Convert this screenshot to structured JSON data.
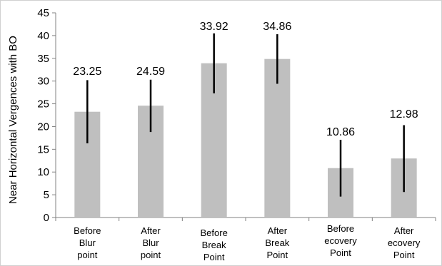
{
  "chart_data": {
    "type": "bar",
    "title": "",
    "xlabel": "",
    "ylabel": "Near Horizontal Vergences with BO",
    "ylim": [
      0,
      45
    ],
    "yticks": [
      0,
      5,
      10,
      15,
      20,
      25,
      30,
      35,
      40,
      45
    ],
    "grid": false,
    "legend": "none",
    "categories": [
      [
        "Before",
        "Blur",
        "point"
      ],
      [
        "After",
        "Blur",
        "point"
      ],
      [
        "Before",
        "Break",
        "Point"
      ],
      [
        "After",
        "Break",
        "Point"
      ],
      [
        "Before",
        "ecovery",
        "Point"
      ],
      [
        "After",
        "ecovery",
        "Point"
      ]
    ],
    "values": [
      23.25,
      24.59,
      33.92,
      34.86,
      10.86,
      12.98
    ],
    "data_labels": [
      "23.25",
      "24.59",
      "33.92",
      "34.86",
      "10.86",
      "12.98"
    ],
    "error_bars": [
      {
        "low": 16.3,
        "high": 30.2
      },
      {
        "low": 18.8,
        "high": 30.3
      },
      {
        "low": 27.3,
        "high": 40.5
      },
      {
        "low": 29.4,
        "high": 40.3
      },
      {
        "low": 4.6,
        "high": 17.1
      },
      {
        "low": 5.6,
        "high": 20.3
      }
    ],
    "colors": {
      "bar": "#bfbfbf",
      "error_bar": "#000000",
      "axis": "#808080",
      "text": "#000000",
      "border": "#d0d0d0"
    }
  }
}
